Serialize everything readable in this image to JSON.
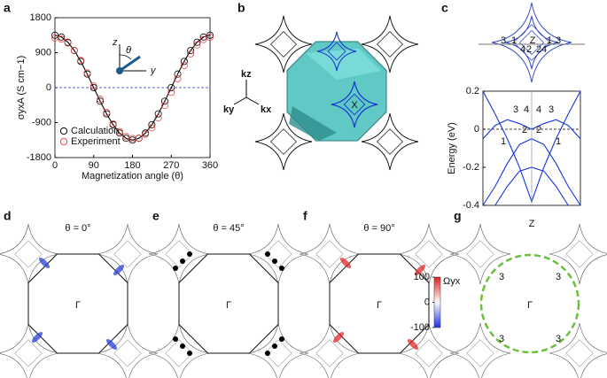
{
  "chart_data": [
    {
      "type": "line",
      "xlabel": "Magnetization angle (θ)",
      "ylabel": "σyxA (S cm−1)",
      "x": [
        0,
        15,
        30,
        45,
        60,
        75,
        90,
        105,
        120,
        135,
        150,
        165,
        180,
        195,
        210,
        225,
        240,
        255,
        270,
        285,
        300,
        315,
        330,
        345,
        360
      ],
      "xlim": [
        0,
        360
      ],
      "xticks": [
        0,
        90,
        180,
        270,
        360
      ],
      "ylim": [
        -1800,
        1800
      ],
      "yticks": [
        -1800,
        -900,
        0,
        900,
        1800
      ],
      "reference_line": 0,
      "legend": "lower left",
      "series": [
        {
          "name": "Calculation",
          "color": "#000000",
          "style": "line+marker",
          "values": [
            1350,
            1304,
            1169,
            955,
            675,
            349,
            0,
            -349,
            -675,
            -955,
            -1169,
            -1304,
            -1350,
            -1304,
            -1169,
            -955,
            -675,
            -349,
            0,
            349,
            675,
            955,
            1169,
            1304,
            1350
          ]
        },
        {
          "name": "Experiment",
          "color": "#e0474c",
          "style": "marker",
          "values": [
            1280,
            1250,
            1150,
            960,
            700,
            380,
            40,
            -300,
            -640,
            -930,
            -1130,
            -1260,
            -1310,
            -1300,
            -1200,
            -1030,
            -780,
            -460,
            -120,
            230,
            570,
            870,
            1100,
            1240,
            1300
          ]
        }
      ],
      "annotations": [
        "z",
        "y",
        "θ"
      ]
    },
    {
      "type": "line",
      "xlabel": "Z",
      "ylabel": "Energy (eV)",
      "x": [
        -1,
        -0.75,
        -0.5,
        -0.25,
        0,
        0.25,
        0.5,
        0.75,
        1
      ],
      "xlim": [
        -1,
        1
      ],
      "ylim": [
        -0.4,
        0.2
      ],
      "yticks": [
        -0.4,
        -0.2,
        0,
        0.2
      ],
      "reference_line": 0,
      "series": [
        {
          "color": "#1636d8",
          "values": [
            0.2,
            0.08,
            -0.05,
            -0.2,
            -0.38,
            -0.2,
            -0.05,
            0.08,
            0.2
          ]
        },
        {
          "color": "#1636d8",
          "values": [
            -0.05,
            0.02,
            0.05,
            0.03,
            0,
            0.03,
            0.05,
            0.02,
            -0.05
          ]
        },
        {
          "color": "#1636d8",
          "values": [
            -0.4,
            -0.3,
            -0.18,
            -0.08,
            -0.05,
            -0.08,
            -0.18,
            -0.3,
            -0.4
          ]
        },
        {
          "color": "#1636d8",
          "values": [
            null,
            -0.4,
            -0.3,
            -0.22,
            -0.2,
            -0.22,
            -0.3,
            -0.4,
            null
          ]
        }
      ],
      "annotations": [
        "3",
        "4",
        "4",
        "3",
        "1",
        "2",
        "2",
        "1"
      ]
    }
  ],
  "panel_labels": [
    "a",
    "b",
    "c",
    "d",
    "e",
    "f",
    "g"
  ],
  "panel_b": {
    "axes": [
      "kz",
      "ky",
      "kx"
    ],
    "point": "X"
  },
  "panel_c_top": {
    "labels": [
      "3",
      "1",
      "4",
      "2",
      "Z",
      "2",
      "4",
      "1",
      "3"
    ]
  },
  "panel_d": {
    "title": "θ = 0°",
    "center": "Γ"
  },
  "panel_e": {
    "title": "θ = 45°",
    "center": "Γ"
  },
  "panel_f": {
    "title": "θ = 90°",
    "center": "Γ",
    "colorbar": {
      "label": "Ωyx",
      "clim": [
        -100,
        100
      ],
      "ticks": [
        100,
        0,
        -100
      ]
    }
  },
  "panel_g": {
    "center": "Γ",
    "labels": [
      "3",
      "3",
      "3",
      "3"
    ]
  }
}
